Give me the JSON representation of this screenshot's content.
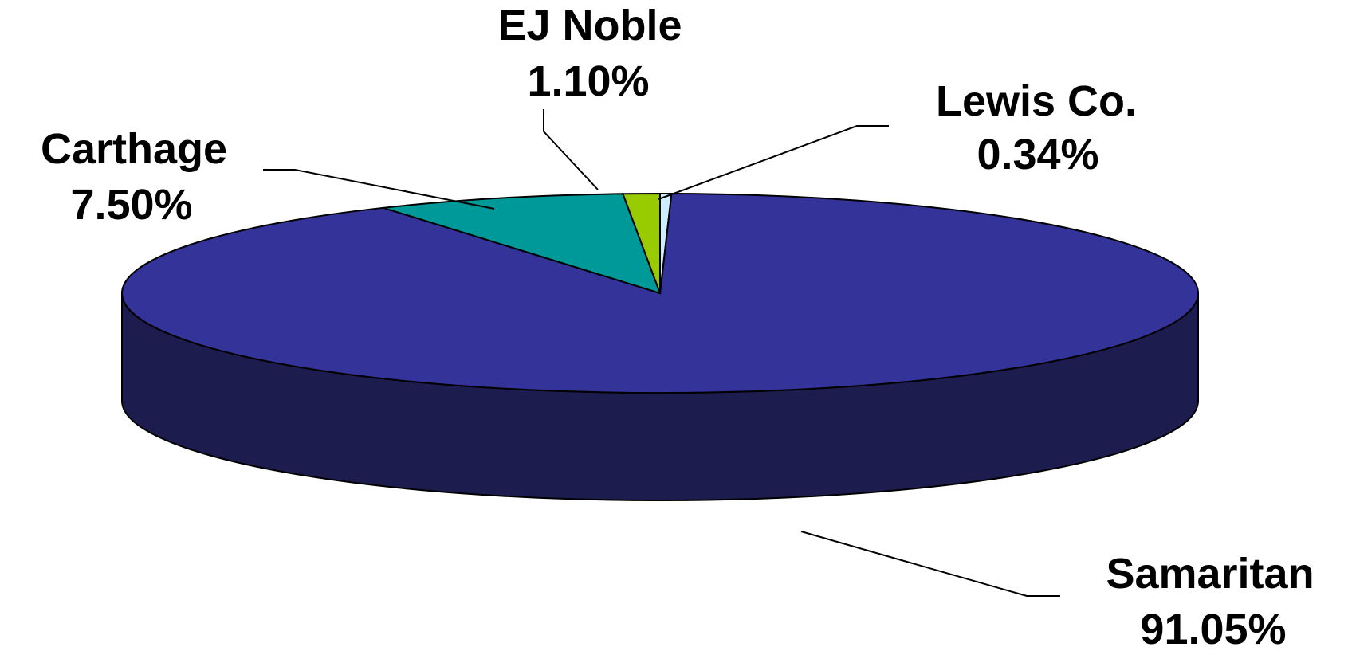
{
  "chart_data": {
    "type": "pie",
    "style": "3d",
    "slices": [
      {
        "label": "Samaritan",
        "value_label": "91.05%",
        "value": 91.05,
        "color": "#333399"
      },
      {
        "label": "Carthage",
        "value_label": "7.50%",
        "value": 7.5,
        "color": "#009999"
      },
      {
        "label": "EJ Noble",
        "value_label": "1.10%",
        "value": 1.1,
        "color": "#99CC00"
      },
      {
        "label": "Lewis Co.",
        "value_label": "0.34%",
        "value": 0.34,
        "color": "#CCECFF"
      }
    ],
    "side_color": "#1C1C4E"
  }
}
